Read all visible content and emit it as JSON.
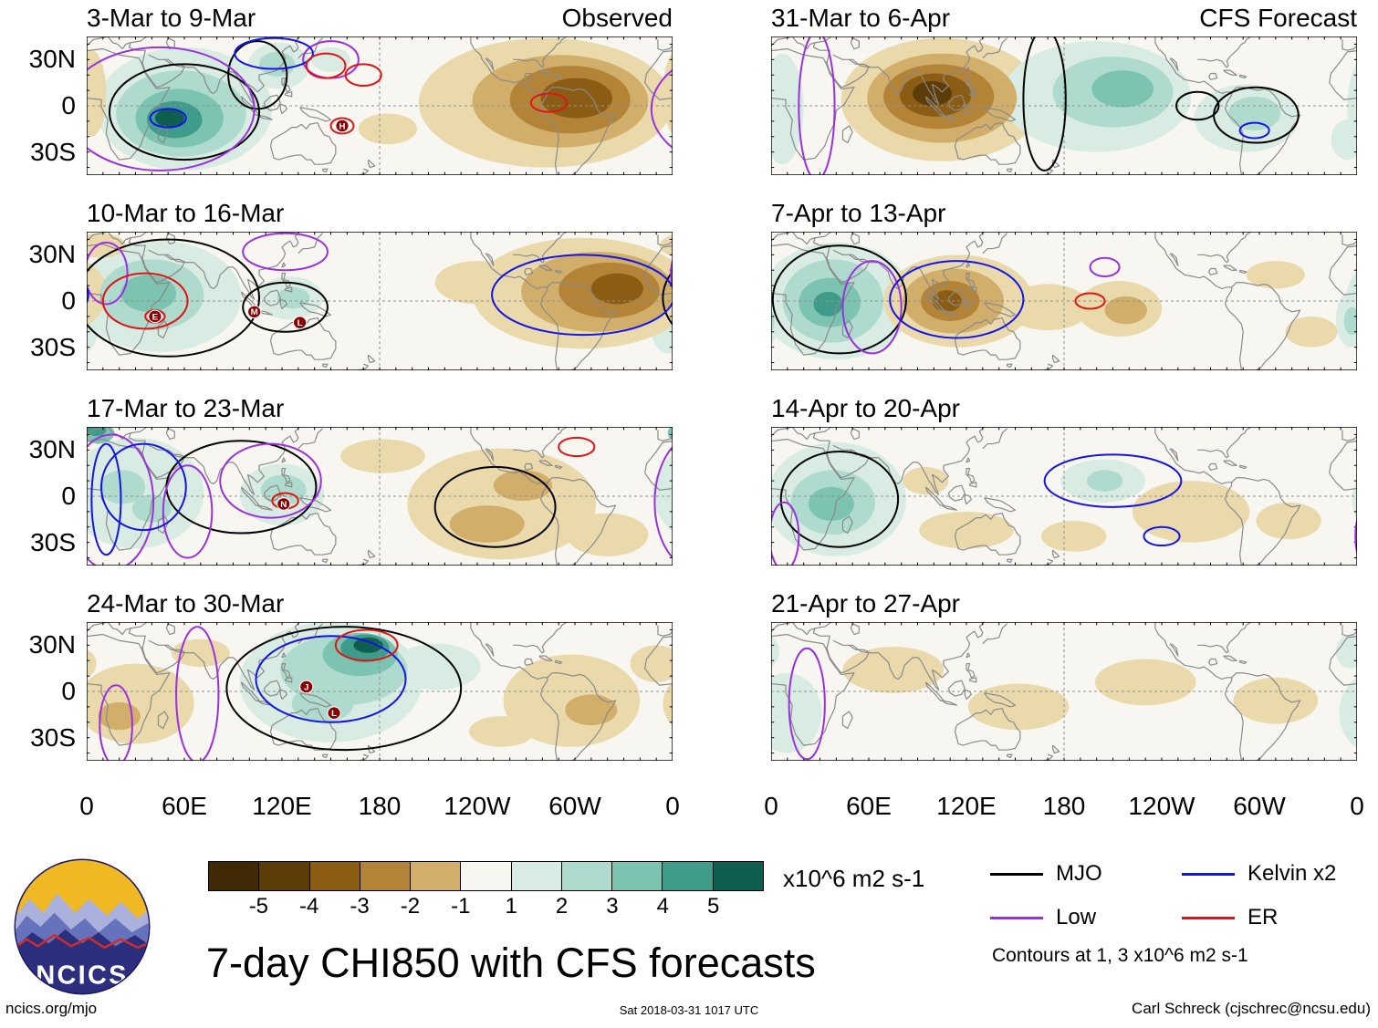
{
  "title": {
    "text": "7-day CHI850 with CFS forecasts"
  },
  "logo": {
    "text": "NCICS"
  },
  "footer": {
    "left": "ncics.org/mjo",
    "center": "Sat 2018-03-31 1017 UTC",
    "right": "Carl Schreck (cjschrec@ncsu.edu)"
  },
  "chart_data": {
    "type": "heatmap",
    "description": "Eight longitude-latitude map panels of 7-day mean 850 hPa velocity potential (CHI850) anomalies; left column observed weeks, right column CFS forecast weeks. Shading in x10^6 m2 s-1, contour overlays for MJO, Low, Kelvin x2 and ER filtered anomalies.",
    "lon_range": [
      0,
      360
    ],
    "lat_range": [
      -45,
      45
    ],
    "axes": {
      "x_ticks": [
        "0",
        "60E",
        "120E",
        "180",
        "120W",
        "60W",
        "0"
      ],
      "y_ticks": [
        {
          "label": "30N",
          "lat": 30
        },
        {
          "label": "0",
          "lat": 0
        },
        {
          "label": "30S",
          "lat": -30
        }
      ]
    },
    "palette": {
      "zero": "#f7f6f1",
      "neg": [
        "#ead9ab",
        "#d2ae6b",
        "#b38438",
        "#8a5c14",
        "#5c3c08"
      ],
      "pos": [
        "#d8ece4",
        "#aedbcd",
        "#7cc3b1",
        "#3f9c8a",
        "#0f5f51"
      ]
    },
    "contour_colors": {
      "mjo": "#000000",
      "low": "#9b30e0",
      "kelvin": "#1414e6",
      "er": "#e01414"
    },
    "colorbar": {
      "colors": [
        "#3f2a05",
        "#5c3c08",
        "#8a5c14",
        "#b38438",
        "#d2ae6b",
        "#f7f6f1",
        "#d8ece4",
        "#aedbcd",
        "#7cc3b1",
        "#3f9c8a",
        "#0f5f51"
      ],
      "ticks": [
        "-5",
        "-4",
        "-3",
        "-2",
        "-1",
        "1",
        "2",
        "3",
        "4",
        "5"
      ],
      "units": "x10^6 m2 s-1"
    },
    "legend": {
      "items": [
        {
          "label": "MJO",
          "color": "#000000"
        },
        {
          "label": "Kelvin x2",
          "color": "#1414e6"
        },
        {
          "label": "Low",
          "color": "#9b30e0"
        },
        {
          "label": "ER",
          "color": "#e01414"
        }
      ],
      "note": "Contours at 1, 3 x10^6 m2 s-1"
    },
    "panels": [
      {
        "title": "3-Mar to 9-Mar",
        "corner_label": "Observed",
        "shading": [
          [
            60,
            -2,
            54,
            40,
            1
          ],
          [
            58,
            -5,
            40,
            28,
            2
          ],
          [
            57,
            -8,
            27,
            19,
            3
          ],
          [
            54,
            -9,
            17,
            12,
            4
          ],
          [
            51,
            -8,
            9,
            6,
            5
          ],
          [
            118,
            26,
            19,
            15,
            1
          ],
          [
            117,
            27,
            11,
            8,
            2
          ],
          [
            150,
            30,
            12,
            8,
            1
          ],
          [
            185,
            -15,
            18,
            10,
            -1
          ],
          [
            282,
            2,
            78,
            42,
            -1
          ],
          [
            291,
            3,
            54,
            30,
            -2
          ],
          [
            297,
            4,
            37,
            22,
            -3
          ],
          [
            301,
            5,
            22,
            13,
            -4
          ],
          [
            3,
            8,
            9,
            28,
            -1
          ]
        ],
        "contours": [
          [
            60,
            -4,
            46,
            31,
            "mjo"
          ],
          [
            105,
            20,
            18,
            22,
            "mjo"
          ],
          [
            45,
            -2,
            58,
            40,
            "low"
          ],
          [
            150,
            30,
            17,
            12,
            "low"
          ],
          [
            50,
            -8,
            11,
            6,
            "kelvin"
          ],
          [
            115,
            34,
            24,
            10,
            "kelvin"
          ],
          [
            147,
            26,
            12,
            8,
            "er"
          ],
          [
            170,
            20,
            11,
            7,
            "er"
          ],
          [
            157,
            -13,
            7,
            5,
            "er"
          ],
          [
            284,
            2,
            11,
            6,
            "er"
          ]
        ],
        "markers": [
          [
            "H",
            157,
            -13
          ]
        ]
      },
      {
        "title": "10-Mar to 16-Mar",
        "corner_label": null,
        "shading": [
          [
            45,
            3,
            50,
            36,
            1
          ],
          [
            40,
            4,
            32,
            23,
            2
          ],
          [
            38,
            5,
            17,
            12,
            3
          ],
          [
            125,
            2,
            20,
            14,
            1
          ],
          [
            127,
            2,
            10,
            7,
            2
          ],
          [
            357,
            -18,
            10,
            16,
            1
          ],
          [
            305,
            5,
            68,
            36,
            -1
          ],
          [
            314,
            6,
            47,
            26,
            -2
          ],
          [
            321,
            7,
            31,
            18,
            -3
          ],
          [
            326,
            8,
            16,
            10,
            -4
          ],
          [
            240,
            12,
            26,
            14,
            -1
          ],
          [
            8,
            36,
            16,
            8,
            -1
          ]
        ],
        "contours": [
          [
            50,
            2,
            56,
            38,
            "mjo"
          ],
          [
            122,
            -4,
            26,
            16,
            "mjo"
          ],
          [
            122,
            32,
            26,
            12,
            "low"
          ],
          [
            12,
            18,
            13,
            20,
            "low"
          ],
          [
            305,
            4,
            56,
            26,
            "kelvin"
          ],
          [
            36,
            0,
            26,
            18,
            "er"
          ],
          [
            42,
            -10,
            6,
            4,
            "er"
          ]
        ],
        "markers": [
          [
            "E",
            42,
            -10
          ],
          [
            "M",
            103,
            -7
          ],
          [
            "L",
            131,
            -14
          ]
        ]
      },
      {
        "title": "17-Mar to 23-Mar",
        "corner_label": null,
        "shading": [
          [
            30,
            2,
            42,
            36,
            1
          ],
          [
            22,
            6,
            14,
            11,
            2
          ],
          [
            40,
            -8,
            12,
            9,
            2
          ],
          [
            7,
            41,
            10,
            7,
            3
          ],
          [
            6,
            43,
            6,
            4,
            4
          ],
          [
            120,
            1,
            26,
            20,
            1
          ],
          [
            121,
            4,
            14,
            10,
            2
          ],
          [
            255,
            -5,
            58,
            36,
            -1
          ],
          [
            246,
            -18,
            23,
            12,
            -2
          ],
          [
            268,
            7,
            18,
            10,
            -2
          ],
          [
            320,
            -25,
            25,
            14,
            -1
          ],
          [
            182,
            26,
            26,
            11,
            -1
          ]
        ],
        "contours": [
          [
            95,
            6,
            46,
            30,
            "mjo"
          ],
          [
            251,
            -7,
            37,
            26,
            "mjo"
          ],
          [
            15,
            -4,
            26,
            44,
            "low"
          ],
          [
            113,
            10,
            31,
            24,
            "low"
          ],
          [
            62,
            -10,
            15,
            30,
            "low"
          ],
          [
            35,
            6,
            26,
            28,
            "kelvin"
          ],
          [
            12,
            -2,
            9,
            36,
            "kelvin"
          ],
          [
            122,
            -3,
            8,
            5,
            "er"
          ],
          [
            301,
            32,
            11,
            6,
            "er"
          ]
        ],
        "markers": [
          [
            "N",
            121,
            -5
          ]
        ]
      },
      {
        "title": "24-Mar to 30-Mar",
        "corner_label": null,
        "shading": [
          [
            150,
            6,
            56,
            39,
            1
          ],
          [
            158,
            14,
            39,
            23,
            2
          ],
          [
            168,
            24,
            23,
            14,
            3
          ],
          [
            171,
            28,
            15,
            9,
            4
          ],
          [
            173,
            30,
            9,
            5,
            5
          ],
          [
            145,
            -8,
            19,
            12,
            2
          ],
          [
            215,
            16,
            27,
            15,
            1
          ],
          [
            30,
            -8,
            36,
            26,
            -1
          ],
          [
            20,
            -16,
            13,
            9,
            -2
          ],
          [
            70,
            25,
            18,
            9,
            -1
          ],
          [
            298,
            -6,
            42,
            30,
            -1
          ],
          [
            310,
            -12,
            16,
            10,
            -2
          ],
          [
            350,
            18,
            16,
            12,
            -1
          ],
          [
            255,
            -26,
            20,
            10,
            -1
          ]
        ],
        "contours": [
          [
            158,
            2,
            72,
            40,
            "mjo"
          ],
          [
            150,
            8,
            46,
            28,
            "kelvin"
          ],
          [
            172,
            30,
            19,
            10,
            "er"
          ],
          [
            68,
            -2,
            13,
            44,
            "low"
          ],
          [
            18,
            -22,
            10,
            26,
            "low"
          ]
        ],
        "markers": [
          [
            "J",
            135,
            3
          ],
          [
            "L",
            152,
            -14
          ]
        ]
      },
      {
        "title": "31-Mar to 6-Apr",
        "corner_label": "CFS Forecast",
        "shading": [
          [
            105,
            4,
            62,
            40,
            -1
          ],
          [
            105,
            5,
            46,
            29,
            -2
          ],
          [
            103,
            6,
            34,
            21,
            -3
          ],
          [
            101,
            7,
            22,
            14,
            -4
          ],
          [
            99,
            8,
            12,
            8,
            -5
          ],
          [
            200,
            6,
            58,
            36,
            1
          ],
          [
            210,
            9,
            37,
            23,
            2
          ],
          [
            216,
            11,
            19,
            12,
            3
          ],
          [
            292,
            -8,
            32,
            22,
            1
          ],
          [
            297,
            -5,
            16,
            11,
            2
          ],
          [
            7,
            -2,
            13,
            36,
            1
          ],
          [
            354,
            -22,
            10,
            13,
            1
          ]
        ],
        "contours": [
          [
            28,
            0,
            11,
            48,
            "low"
          ],
          [
            168,
            4,
            13,
            46,
            "mjo"
          ],
          [
            298,
            -6,
            26,
            18,
            "mjo"
          ],
          [
            262,
            0,
            13,
            9,
            "mjo"
          ],
          [
            297,
            -16,
            9,
            5,
            "kelvin"
          ]
        ],
        "markers": []
      },
      {
        "title": "7-Apr to 13-Apr",
        "corner_label": null,
        "shading": [
          [
            40,
            0,
            47,
            38,
            1
          ],
          [
            38,
            0,
            31,
            27,
            2
          ],
          [
            36,
            -1,
            19,
            16,
            3
          ],
          [
            35,
            -2,
            9,
            8,
            4
          ],
          [
            356,
            -12,
            9,
            18,
            1
          ],
          [
            357,
            -13,
            5,
            9,
            2
          ],
          [
            115,
            0,
            46,
            30,
            -1
          ],
          [
            112,
            0,
            31,
            21,
            -2
          ],
          [
            110,
            0,
            18,
            13,
            -3
          ],
          [
            108,
            0,
            9,
            7,
            -4
          ],
          [
            170,
            -4,
            26,
            15,
            -1
          ],
          [
            214,
            -5,
            26,
            18,
            -1
          ],
          [
            218,
            -6,
            13,
            9,
            -2
          ],
          [
            310,
            17,
            18,
            9,
            -1
          ],
          [
            332,
            -20,
            16,
            10,
            -1
          ]
        ],
        "contours": [
          [
            42,
            1,
            41,
            35,
            "mjo"
          ],
          [
            62,
            -4,
            18,
            30,
            "low"
          ],
          [
            205,
            22,
            9,
            6,
            "low"
          ],
          [
            114,
            1,
            41,
            25,
            "kelvin"
          ],
          [
            196,
            0,
            9,
            5,
            "er"
          ]
        ],
        "markers": []
      },
      {
        "title": "14-Apr to 20-Apr",
        "corner_label": null,
        "shading": [
          [
            40,
            -2,
            43,
            37,
            1
          ],
          [
            38,
            -4,
            26,
            21,
            2
          ],
          [
            37,
            -5,
            14,
            11,
            3
          ],
          [
            204,
            10,
            26,
            14,
            1
          ],
          [
            205,
            10,
            11,
            7,
            2
          ],
          [
            120,
            -22,
            29,
            12,
            -1
          ],
          [
            258,
            -10,
            36,
            20,
            -1
          ],
          [
            318,
            -16,
            20,
            12,
            -1
          ],
          [
            186,
            -26,
            20,
            10,
            -1
          ],
          [
            95,
            10,
            14,
            9,
            -1
          ]
        ],
        "contours": [
          [
            42,
            -2,
            36,
            31,
            "mjo"
          ],
          [
            8,
            -26,
            9,
            22,
            "low"
          ],
          [
            210,
            10,
            42,
            17,
            "kelvin"
          ],
          [
            240,
            -26,
            11,
            6,
            "kelvin"
          ]
        ],
        "markers": []
      },
      {
        "title": "21-Apr to 27-Apr",
        "corner_label": null,
        "shading": [
          [
            10,
            -14,
            21,
            26,
            1
          ],
          [
            356,
            26,
            9,
            11,
            1
          ],
          [
            75,
            14,
            31,
            15,
            -1
          ],
          [
            152,
            -10,
            31,
            15,
            -1
          ],
          [
            230,
            6,
            31,
            15,
            -1
          ],
          [
            310,
            -6,
            26,
            15,
            -1
          ]
        ],
        "contours": [
          [
            22,
            -8,
            11,
            36,
            "low"
          ]
        ],
        "markers": []
      }
    ]
  }
}
